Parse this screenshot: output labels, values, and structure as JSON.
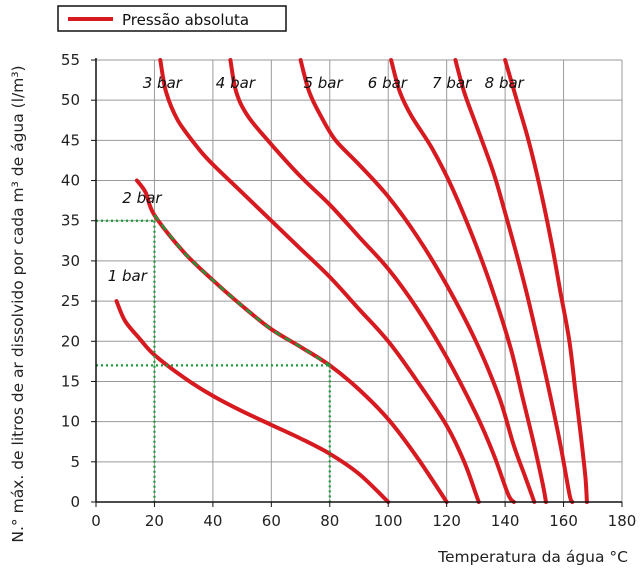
{
  "chart_data": {
    "type": "line",
    "legend": {
      "label": "Pressão absoluta",
      "position": "top-left",
      "color": "#d71920"
    },
    "xlabel": "Temperatura da água °C",
    "ylabel": "N.° máx. de litros de ar dissolvido por cada m³ de água (l/m³)",
    "xlim": [
      0,
      180
    ],
    "ylim": [
      0,
      55
    ],
    "xticks": [
      "0",
      "20",
      "40",
      "60",
      "80",
      "100",
      "120",
      "140",
      "160",
      "180"
    ],
    "yticks": [
      "0",
      "5",
      "10",
      "15",
      "20",
      "25",
      "30",
      "35",
      "40",
      "45",
      "50",
      "55"
    ],
    "grid": true,
    "series": [
      {
        "name": "1 bar",
        "label_at": [
          4,
          27.5
        ],
        "points": [
          [
            7,
            25
          ],
          [
            10,
            22.5
          ],
          [
            15,
            20.3
          ],
          [
            20,
            18.3
          ],
          [
            30,
            15.5
          ],
          [
            40,
            13.2
          ],
          [
            50,
            11.3
          ],
          [
            60,
            9.6
          ],
          [
            70,
            7.9
          ],
          [
            80,
            6.0
          ],
          [
            90,
            3.5
          ],
          [
            100,
            0
          ]
        ]
      },
      {
        "name": "2 bar",
        "label_at": [
          9,
          37.2
        ],
        "points": [
          [
            14,
            40
          ],
          [
            17,
            38.5
          ],
          [
            20,
            35.7
          ],
          [
            30,
            31.1
          ],
          [
            40,
            27.6
          ],
          [
            50,
            24.4
          ],
          [
            60,
            21.5
          ],
          [
            70,
            19.3
          ],
          [
            80,
            17.0
          ],
          [
            90,
            14.0
          ],
          [
            100,
            10.3
          ],
          [
            110,
            5.5
          ],
          [
            120,
            0
          ]
        ]
      },
      {
        "name": "3 bar",
        "label_at": [
          16,
          51.5
        ],
        "points": [
          [
            22,
            55
          ],
          [
            24,
            51
          ],
          [
            28,
            47.5
          ],
          [
            35,
            44
          ],
          [
            40,
            42
          ],
          [
            50,
            38.5
          ],
          [
            60,
            35
          ],
          [
            70,
            31.5
          ],
          [
            80,
            28
          ],
          [
            90,
            24
          ],
          [
            100,
            20
          ],
          [
            110,
            15
          ],
          [
            120,
            9.5
          ],
          [
            126,
            5
          ],
          [
            130,
            1
          ],
          [
            131,
            0
          ]
        ]
      },
      {
        "name": "4 bar",
        "label_at": [
          41,
          51.5
        ],
        "points": [
          [
            46,
            55
          ],
          [
            48,
            51
          ],
          [
            52,
            48
          ],
          [
            60,
            44.5
          ],
          [
            70,
            40.5
          ],
          [
            80,
            37
          ],
          [
            90,
            33
          ],
          [
            100,
            29
          ],
          [
            110,
            24
          ],
          [
            120,
            18
          ],
          [
            130,
            11
          ],
          [
            136,
            6
          ],
          [
            141,
            1
          ],
          [
            143,
            0
          ]
        ]
      },
      {
        "name": "5 bar",
        "label_at": [
          71,
          51.5
        ],
        "points": [
          [
            70,
            55
          ],
          [
            73,
            51
          ],
          [
            77,
            48
          ],
          [
            82,
            45
          ],
          [
            90,
            42
          ],
          [
            100,
            38
          ],
          [
            110,
            33
          ],
          [
            120,
            27
          ],
          [
            130,
            20
          ],
          [
            138,
            13
          ],
          [
            143,
            7
          ],
          [
            147,
            3
          ],
          [
            150,
            0
          ]
        ]
      },
      {
        "name": "6 bar",
        "label_at": [
          93,
          51.5
        ],
        "points": [
          [
            101,
            55
          ],
          [
            104,
            51
          ],
          [
            108,
            48
          ],
          [
            115,
            44
          ],
          [
            122,
            39
          ],
          [
            130,
            32
          ],
          [
            136,
            26
          ],
          [
            142,
            19
          ],
          [
            146,
            13
          ],
          [
            150,
            7
          ],
          [
            153,
            2
          ],
          [
            154,
            0
          ]
        ]
      },
      {
        "name": "7 bar",
        "label_at": [
          115,
          51.5
        ],
        "points": [
          [
            123,
            55
          ],
          [
            126,
            51
          ],
          [
            130,
            47
          ],
          [
            136,
            41
          ],
          [
            140,
            36
          ],
          [
            146,
            28
          ],
          [
            150,
            22
          ],
          [
            155,
            14
          ],
          [
            159,
            7
          ],
          [
            162,
            1
          ],
          [
            163,
            0
          ]
        ]
      },
      {
        "name": "8 bar",
        "label_at": [
          133,
          51.5
        ],
        "points": [
          [
            140,
            55
          ],
          [
            144,
            50
          ],
          [
            148,
            45
          ],
          [
            152,
            39
          ],
          [
            156,
            32
          ],
          [
            159,
            26
          ],
          [
            162,
            20
          ],
          [
            164,
            14
          ],
          [
            166,
            8
          ],
          [
            167.5,
            3
          ],
          [
            168,
            0
          ]
        ]
      }
    ],
    "annotations": {
      "highlight_color": "#1e9a3c",
      "highlight_segment": {
        "series": "2 bar",
        "x_from": 20,
        "x_to": 80
      },
      "guide_lines": [
        {
          "x": 20,
          "y": 35
        },
        {
          "x": 80,
          "y": 17
        }
      ]
    }
  }
}
